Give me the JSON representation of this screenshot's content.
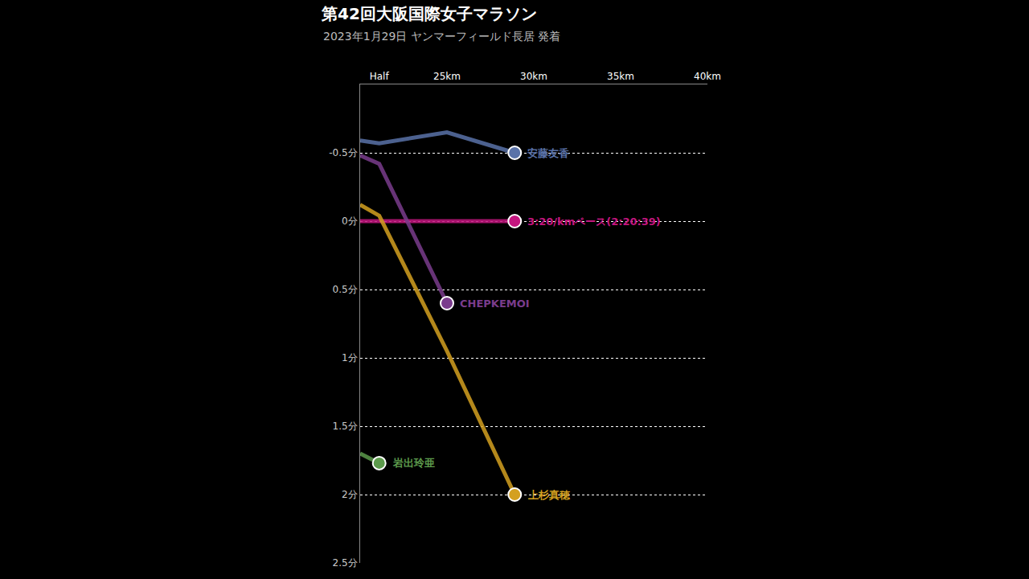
{
  "chart_data": {
    "type": "line",
    "title": "第42回大阪国際女子マラソン",
    "subtitle": "2023年1月29日 ヤンマーフィールド長居 発着",
    "xlim": [
      20,
      40
    ],
    "xticks": [
      {
        "value": 21.0975,
        "label": "Half"
      },
      {
        "value": 25,
        "label": "25km"
      },
      {
        "value": 30,
        "label": "30km"
      },
      {
        "value": 35,
        "label": "35km"
      },
      {
        "value": 40,
        "label": "40km"
      }
    ],
    "ylim": [
      2.5,
      -1
    ],
    "yticks": [
      {
        "value": -0.5,
        "label": "-0.5分"
      },
      {
        "value": 0,
        "label": "0分"
      },
      {
        "value": 0.5,
        "label": "0.5分"
      },
      {
        "value": 1,
        "label": "1分"
      },
      {
        "value": 1.5,
        "label": "1.5分"
      },
      {
        "value": 2,
        "label": "2分"
      },
      {
        "value": 2.5,
        "label": "2.5分"
      }
    ],
    "grid": true,
    "series": [
      {
        "name": "安藤友香",
        "color": "#5a72a8",
        "x": [
          20,
          21.0975,
          25,
          28.9
        ],
        "values": [
          -0.59,
          -0.57,
          -0.65,
          -0.5
        ]
      },
      {
        "name": "3:20/kmペース(2:20:39)",
        "color": "#c4167f",
        "x": [
          20,
          21.0975,
          25,
          28.9
        ],
        "values": [
          0,
          0,
          0,
          0
        ]
      },
      {
        "name": "CHEPKEMOI",
        "color": "#7a3c8c",
        "x": [
          20,
          21.0975,
          25
        ],
        "values": [
          -0.48,
          -0.42,
          0.6
        ]
      },
      {
        "name": "岩出玲亜",
        "color": "#5c9a4c",
        "x": [
          20,
          21.0975
        ],
        "values": [
          1.7,
          1.77
        ]
      },
      {
        "name": "上杉真穂",
        "color": "#d4a020",
        "x": [
          20,
          21.0975,
          25,
          28.9
        ],
        "values": [
          -0.12,
          -0.04,
          0.95,
          2.0
        ]
      }
    ]
  }
}
